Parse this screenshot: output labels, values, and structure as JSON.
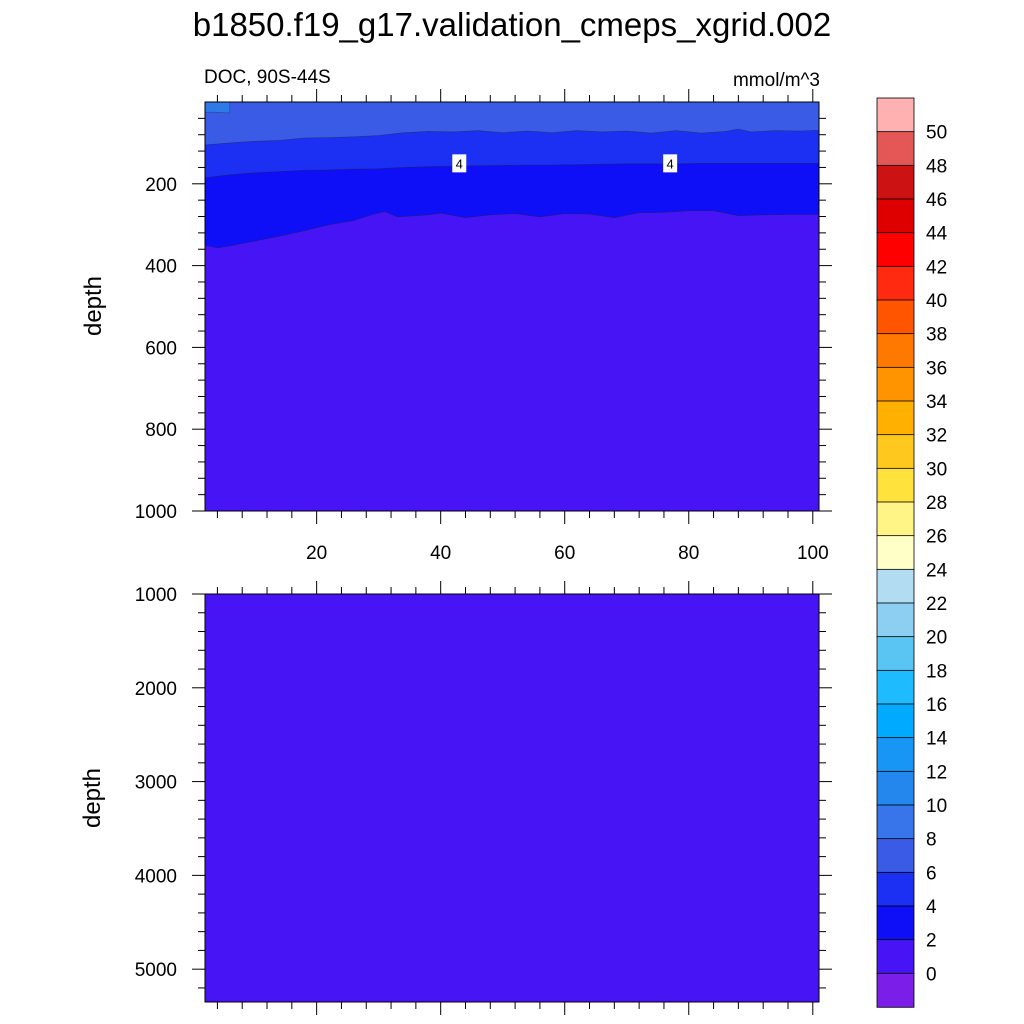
{
  "title": "b1850.f19_g17.validation_cmeps_xgrid.002",
  "chart_data": [
    {
      "type": "heatmap",
      "variable_label": "DOC, 90S-44S",
      "units": "mmol/m^3",
      "ylabel": "depth",
      "xlabel": "",
      "xlim": [
        2,
        101
      ],
      "ylim": [
        1000,
        0
      ],
      "xticks": [
        20,
        40,
        60,
        80,
        100
      ],
      "yticks": [
        200,
        400,
        600,
        800,
        1000
      ],
      "contour_labels": [
        {
          "text": "4",
          "x": 43,
          "depth": 150
        },
        {
          "text": "4",
          "x": 77,
          "depth": 150
        }
      ],
      "layers": [
        {
          "level": "8-10",
          "color": "#2e7ae9",
          "top": [
            25,
            25,
            26,
            27
          ],
          "top_x": [
            2,
            3.5,
            5,
            6
          ]
        },
        {
          "level": "6-8",
          "color": "#3a5be6",
          "x": [
            2,
            6,
            10,
            14,
            18,
            22,
            26,
            30,
            34,
            38,
            42,
            46,
            50,
            54,
            58,
            62,
            66,
            70,
            74,
            78,
            82,
            86,
            88,
            90,
            94,
            98,
            101
          ],
          "bottom": [
            105,
            100,
            96,
            94,
            88,
            87,
            85,
            82,
            75,
            72,
            73,
            70,
            75,
            71,
            75,
            70,
            73,
            71,
            76,
            70,
            76,
            72,
            66,
            73,
            70,
            71,
            69
          ]
        },
        {
          "level": "4-6",
          "color": "#1b30f2",
          "x": [
            2,
            6,
            10,
            14,
            18,
            22,
            26,
            30,
            34,
            38,
            42,
            46,
            50,
            54,
            58,
            62,
            66,
            70,
            74,
            78,
            82,
            86,
            90,
            94,
            98,
            101
          ],
          "bottom": [
            185,
            178,
            173,
            170,
            167,
            166,
            164,
            163,
            160,
            158,
            157,
            156,
            155,
            154,
            154,
            153,
            152,
            151,
            151,
            151,
            150,
            150,
            150,
            150,
            150,
            150
          ]
        },
        {
          "level": "2-4",
          "color": "#0f0ff7",
          "x": [
            2,
            4,
            6,
            10,
            14,
            18,
            22,
            26,
            29,
            31,
            33,
            36,
            38,
            40,
            44,
            48,
            52,
            56,
            60,
            64,
            68,
            72,
            76,
            80,
            84,
            88,
            92,
            96,
            101
          ],
          "bottom": [
            350,
            357,
            352,
            340,
            328,
            315,
            300,
            290,
            275,
            268,
            281,
            278,
            276,
            272,
            283,
            276,
            273,
            281,
            273,
            274,
            283,
            271,
            270,
            266,
            266,
            278,
            276,
            275,
            275
          ]
        },
        {
          "level": "0-2",
          "color": "#4715f5"
        }
      ]
    },
    {
      "type": "heatmap",
      "ylabel": "depth",
      "xlabel": "",
      "xlim": [
        2,
        101
      ],
      "ylim": [
        5350,
        1000
      ],
      "xticks": [
        20,
        40,
        60,
        80,
        100
      ],
      "yticks": [
        1000,
        2000,
        3000,
        4000,
        5000
      ],
      "layers": [
        {
          "level": "0-2",
          "color": "#4715f5"
        }
      ]
    }
  ],
  "colorbar": {
    "labels": [
      "50",
      "48",
      "46",
      "44",
      "42",
      "40",
      "38",
      "36",
      "34",
      "32",
      "30",
      "28",
      "26",
      "24",
      "22",
      "20",
      "18",
      "16",
      "14",
      "12",
      "10",
      "8",
      "6",
      "4",
      "2",
      "0"
    ],
    "colors": [
      "#ffb1b1",
      "#e35757",
      "#cc1212",
      "#de0000",
      "#ff0000",
      "#ff2a10",
      "#ff5400",
      "#ff7800",
      "#ff9400",
      "#ffb000",
      "#ffc81e",
      "#ffe33c",
      "#fff485",
      "#ffffc8",
      "#b2dcf2",
      "#8dcff0",
      "#5ac5f2",
      "#1ebcff",
      "#00aaff",
      "#1896f5",
      "#2387ee",
      "#3875ea",
      "#3a5be6",
      "#1b30f2",
      "#0f0ff7",
      "#4715f5",
      "#7a1ee8"
    ]
  }
}
